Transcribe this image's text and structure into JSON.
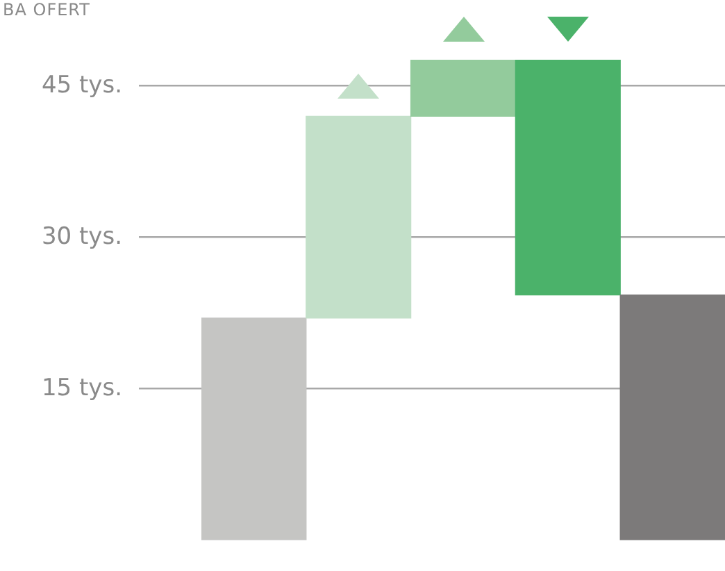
{
  "chart_data": {
    "type": "bar",
    "title": "BA OFERT",
    "categories": [
      null,
      null,
      null,
      null,
      null
    ],
    "values": [
      22,
      20,
      5.6,
      -23.3,
      24.3
    ],
    "base": [
      0,
      22,
      42,
      47.6,
      0
    ],
    "colors": [
      "#c5c5c3",
      "#c3e0c9",
      "#93cb9c",
      "#4bb26a",
      "#7c7a7a"
    ],
    "ylim": [
      0,
      47.6
    ],
    "yticks": [
      {
        "value": 15,
        "label": "15 tys."
      },
      {
        "value": 30,
        "label": "30 tys."
      },
      {
        "value": 45,
        "label": "45 tys."
      }
    ],
    "grid": "y",
    "tick_labels": "y",
    "legend": false
  }
}
